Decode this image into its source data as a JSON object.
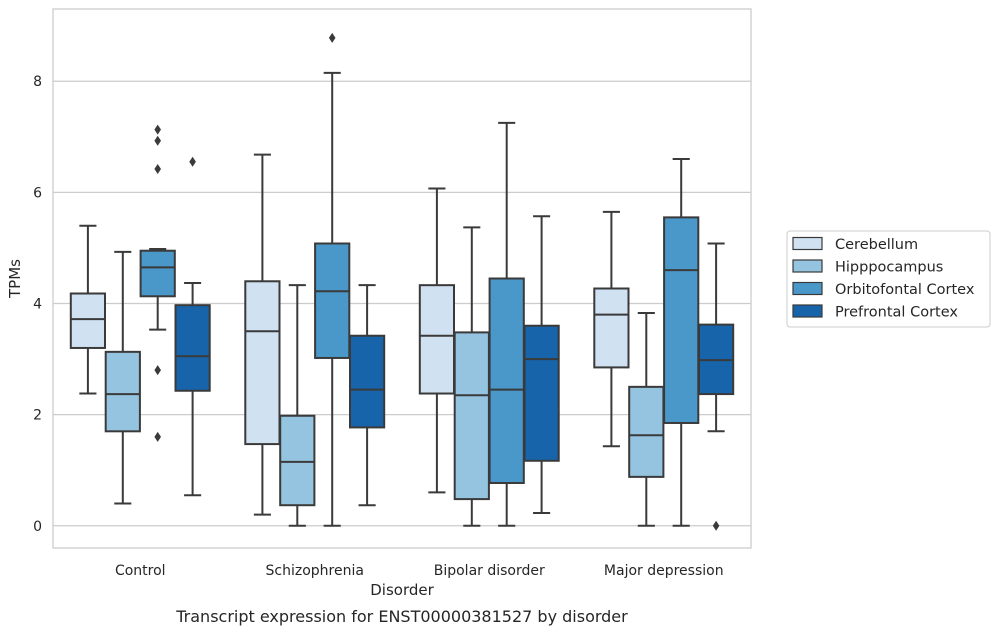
{
  "chart_data": {
    "type": "boxplot",
    "caption": "Transcript expression for ENST00000381527 by disorder",
    "xlabel": "Disorder",
    "ylabel": "TPMs",
    "ylim": [
      -0.4,
      9.3
    ],
    "yticks": [
      0,
      2,
      4,
      6,
      8
    ],
    "grid": "horizontal",
    "legend_position": "right",
    "categories": [
      "Control",
      "Schizophrenia",
      "Bipolar disorder",
      "Major depression"
    ],
    "series": [
      {
        "name": "Cerebellum",
        "color": "#d0e1f2",
        "boxes": [
          {
            "whislo": 2.38,
            "q1": 3.2,
            "med": 3.72,
            "q3": 4.18,
            "whishi": 5.4,
            "fliers": []
          },
          {
            "whislo": 0.2,
            "q1": 1.47,
            "med": 3.5,
            "q3": 4.4,
            "whishi": 6.68,
            "fliers": []
          },
          {
            "whislo": 0.6,
            "q1": 2.38,
            "med": 3.42,
            "q3": 4.33,
            "whishi": 6.07,
            "fliers": []
          },
          {
            "whislo": 1.43,
            "q1": 2.85,
            "med": 3.8,
            "q3": 4.27,
            "whishi": 5.65,
            "fliers": []
          }
        ]
      },
      {
        "name": "Hipppocampus",
        "color": "#94c4df",
        "boxes": [
          {
            "whislo": 0.4,
            "q1": 1.7,
            "med": 2.37,
            "q3": 3.13,
            "whishi": 4.93,
            "fliers": []
          },
          {
            "whislo": 0.0,
            "q1": 0.37,
            "med": 1.15,
            "q3": 1.98,
            "whishi": 4.33,
            "fliers": []
          },
          {
            "whislo": 0.0,
            "q1": 0.48,
            "med": 2.35,
            "q3": 3.48,
            "whishi": 5.37,
            "fliers": []
          },
          {
            "whislo": 0.0,
            "q1": 0.88,
            "med": 1.63,
            "q3": 2.5,
            "whishi": 3.83,
            "fliers": []
          }
        ]
      },
      {
        "name": "Orbitofontal Cortex",
        "color": "#4a98c9",
        "boxes": [
          {
            "whislo": 3.53,
            "q1": 4.13,
            "med": 4.65,
            "q3": 4.95,
            "whishi": 4.98,
            "fliers": [
              7.13,
              6.93,
              6.42,
              2.8,
              1.6
            ]
          },
          {
            "whislo": 0.0,
            "q1": 3.02,
            "med": 4.22,
            "q3": 5.08,
            "whishi": 8.15,
            "fliers": [
              8.78
            ]
          },
          {
            "whislo": 0.0,
            "q1": 0.77,
            "med": 2.45,
            "q3": 4.45,
            "whishi": 7.25,
            "fliers": []
          },
          {
            "whislo": 0.0,
            "q1": 1.85,
            "med": 4.6,
            "q3": 5.55,
            "whishi": 6.6,
            "fliers": []
          }
        ]
      },
      {
        "name": "Prefrontal Cortex",
        "color": "#1764ab",
        "boxes": [
          {
            "whislo": 0.55,
            "q1": 2.43,
            "med": 3.05,
            "q3": 3.97,
            "whishi": 4.37,
            "fliers": [
              6.55
            ]
          },
          {
            "whislo": 0.37,
            "q1": 1.77,
            "med": 2.45,
            "q3": 3.42,
            "whishi": 4.33,
            "fliers": []
          },
          {
            "whislo": 0.23,
            "q1": 1.17,
            "med": 3.0,
            "q3": 3.6,
            "whishi": 5.57,
            "fliers": []
          },
          {
            "whislo": 1.7,
            "q1": 2.37,
            "med": 2.98,
            "q3": 3.62,
            "whishi": 5.08,
            "fliers": [
              0.0
            ]
          }
        ]
      }
    ]
  }
}
